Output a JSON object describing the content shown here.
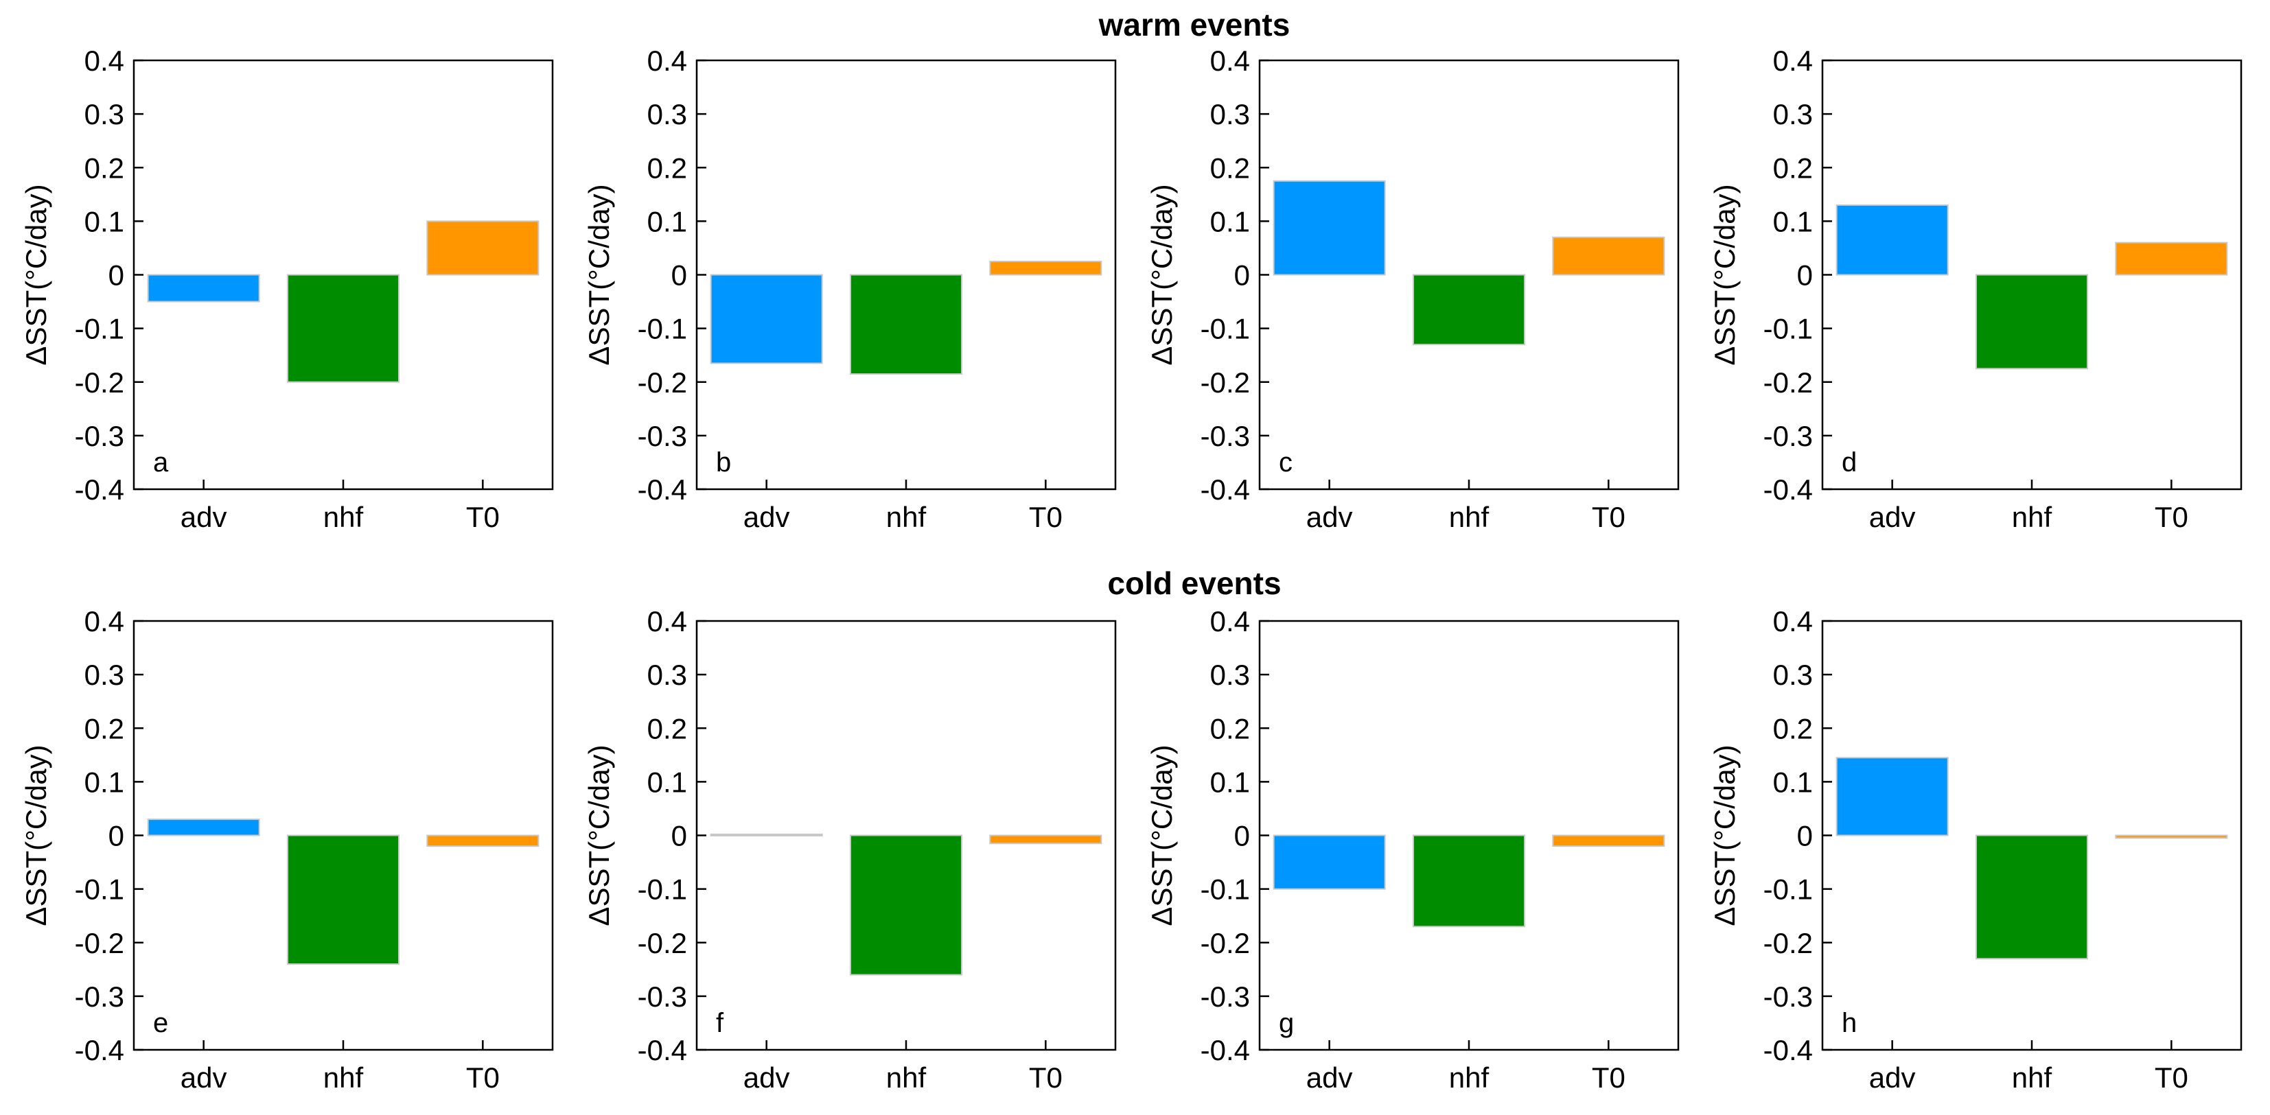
{
  "chart_data": {
    "type": "bar",
    "row_titles": [
      "warm events",
      "cold events"
    ],
    "colors": {
      "adv": "#0096ff",
      "nhf": "#008c00",
      "T0": "#ff9600"
    },
    "panels": [
      {
        "label": "a",
        "row": 0,
        "title": "",
        "xlabel": "",
        "ylabel": "ΔSST(°C/day)",
        "ylim": [
          -0.4,
          0.4
        ],
        "yticks": [
          "0.4",
          "0.3",
          "0.2",
          "0.1",
          "0",
          "-0.1",
          "-0.2",
          "-0.3",
          "-0.4"
        ],
        "categories": [
          "adv",
          "nhf",
          "T0"
        ],
        "values": [
          -0.05,
          -0.2,
          0.1
        ]
      },
      {
        "label": "b",
        "row": 0,
        "title": "",
        "xlabel": "",
        "ylabel": "ΔSST(°C/day)",
        "ylim": [
          -0.4,
          0.4
        ],
        "yticks": [
          "0.4",
          "0.3",
          "0.2",
          "0.1",
          "0",
          "-0.1",
          "-0.2",
          "-0.3",
          "-0.4"
        ],
        "categories": [
          "adv",
          "nhf",
          "T0"
        ],
        "values": [
          -0.165,
          -0.185,
          0.025
        ]
      },
      {
        "label": "c",
        "row": 0,
        "title": "",
        "xlabel": "",
        "ylabel": "ΔSST(°C/day)",
        "ylim": [
          -0.4,
          0.4
        ],
        "yticks": [
          "0.4",
          "0.3",
          "0.2",
          "0.1",
          "0",
          "-0.1",
          "-0.2",
          "-0.3",
          "-0.4"
        ],
        "categories": [
          "adv",
          "nhf",
          "T0"
        ],
        "values": [
          0.175,
          -0.13,
          0.07
        ]
      },
      {
        "label": "d",
        "row": 0,
        "title": "",
        "xlabel": "",
        "ylabel": "ΔSST(°C/day)",
        "ylim": [
          -0.4,
          0.4
        ],
        "yticks": [
          "0.4",
          "0.3",
          "0.2",
          "0.1",
          "0",
          "-0.1",
          "-0.2",
          "-0.3",
          "-0.4"
        ],
        "categories": [
          "adv",
          "nhf",
          "T0"
        ],
        "values": [
          0.13,
          -0.175,
          0.06
        ]
      },
      {
        "label": "e",
        "row": 1,
        "title": "",
        "xlabel": "",
        "ylabel": "ΔSST(°C/day)",
        "ylim": [
          -0.4,
          0.4
        ],
        "yticks": [
          "0.4",
          "0.3",
          "0.2",
          "0.1",
          "0",
          "-0.1",
          "-0.2",
          "-0.3",
          "-0.4"
        ],
        "categories": [
          "adv",
          "nhf",
          "T0"
        ],
        "values": [
          0.03,
          -0.24,
          -0.02
        ]
      },
      {
        "label": "f",
        "row": 1,
        "title": "",
        "xlabel": "",
        "ylabel": "ΔSST(°C/day)",
        "ylim": [
          -0.4,
          0.4
        ],
        "yticks": [
          "0.4",
          "0.3",
          "0.2",
          "0.1",
          "0",
          "-0.1",
          "-0.2",
          "-0.3",
          "-0.4"
        ],
        "categories": [
          "adv",
          "nhf",
          "T0"
        ],
        "values": [
          0.002,
          -0.26,
          -0.015
        ]
      },
      {
        "label": "g",
        "row": 1,
        "title": "",
        "xlabel": "",
        "ylabel": "ΔSST(°C/day)",
        "ylim": [
          -0.4,
          0.4
        ],
        "yticks": [
          "0.4",
          "0.3",
          "0.2",
          "0.1",
          "0",
          "-0.1",
          "-0.2",
          "-0.3",
          "-0.4"
        ],
        "categories": [
          "adv",
          "nhf",
          "T0"
        ],
        "values": [
          -0.1,
          -0.17,
          -0.02
        ]
      },
      {
        "label": "h",
        "row": 1,
        "title": "",
        "xlabel": "",
        "ylabel": "ΔSST(°C/day)",
        "ylim": [
          -0.4,
          0.4
        ],
        "yticks": [
          "0.4",
          "0.3",
          "0.2",
          "0.1",
          "0",
          "-0.1",
          "-0.2",
          "-0.3",
          "-0.4"
        ],
        "categories": [
          "adv",
          "nhf",
          "T0"
        ],
        "values": [
          0.145,
          -0.23,
          -0.005
        ]
      }
    ]
  }
}
